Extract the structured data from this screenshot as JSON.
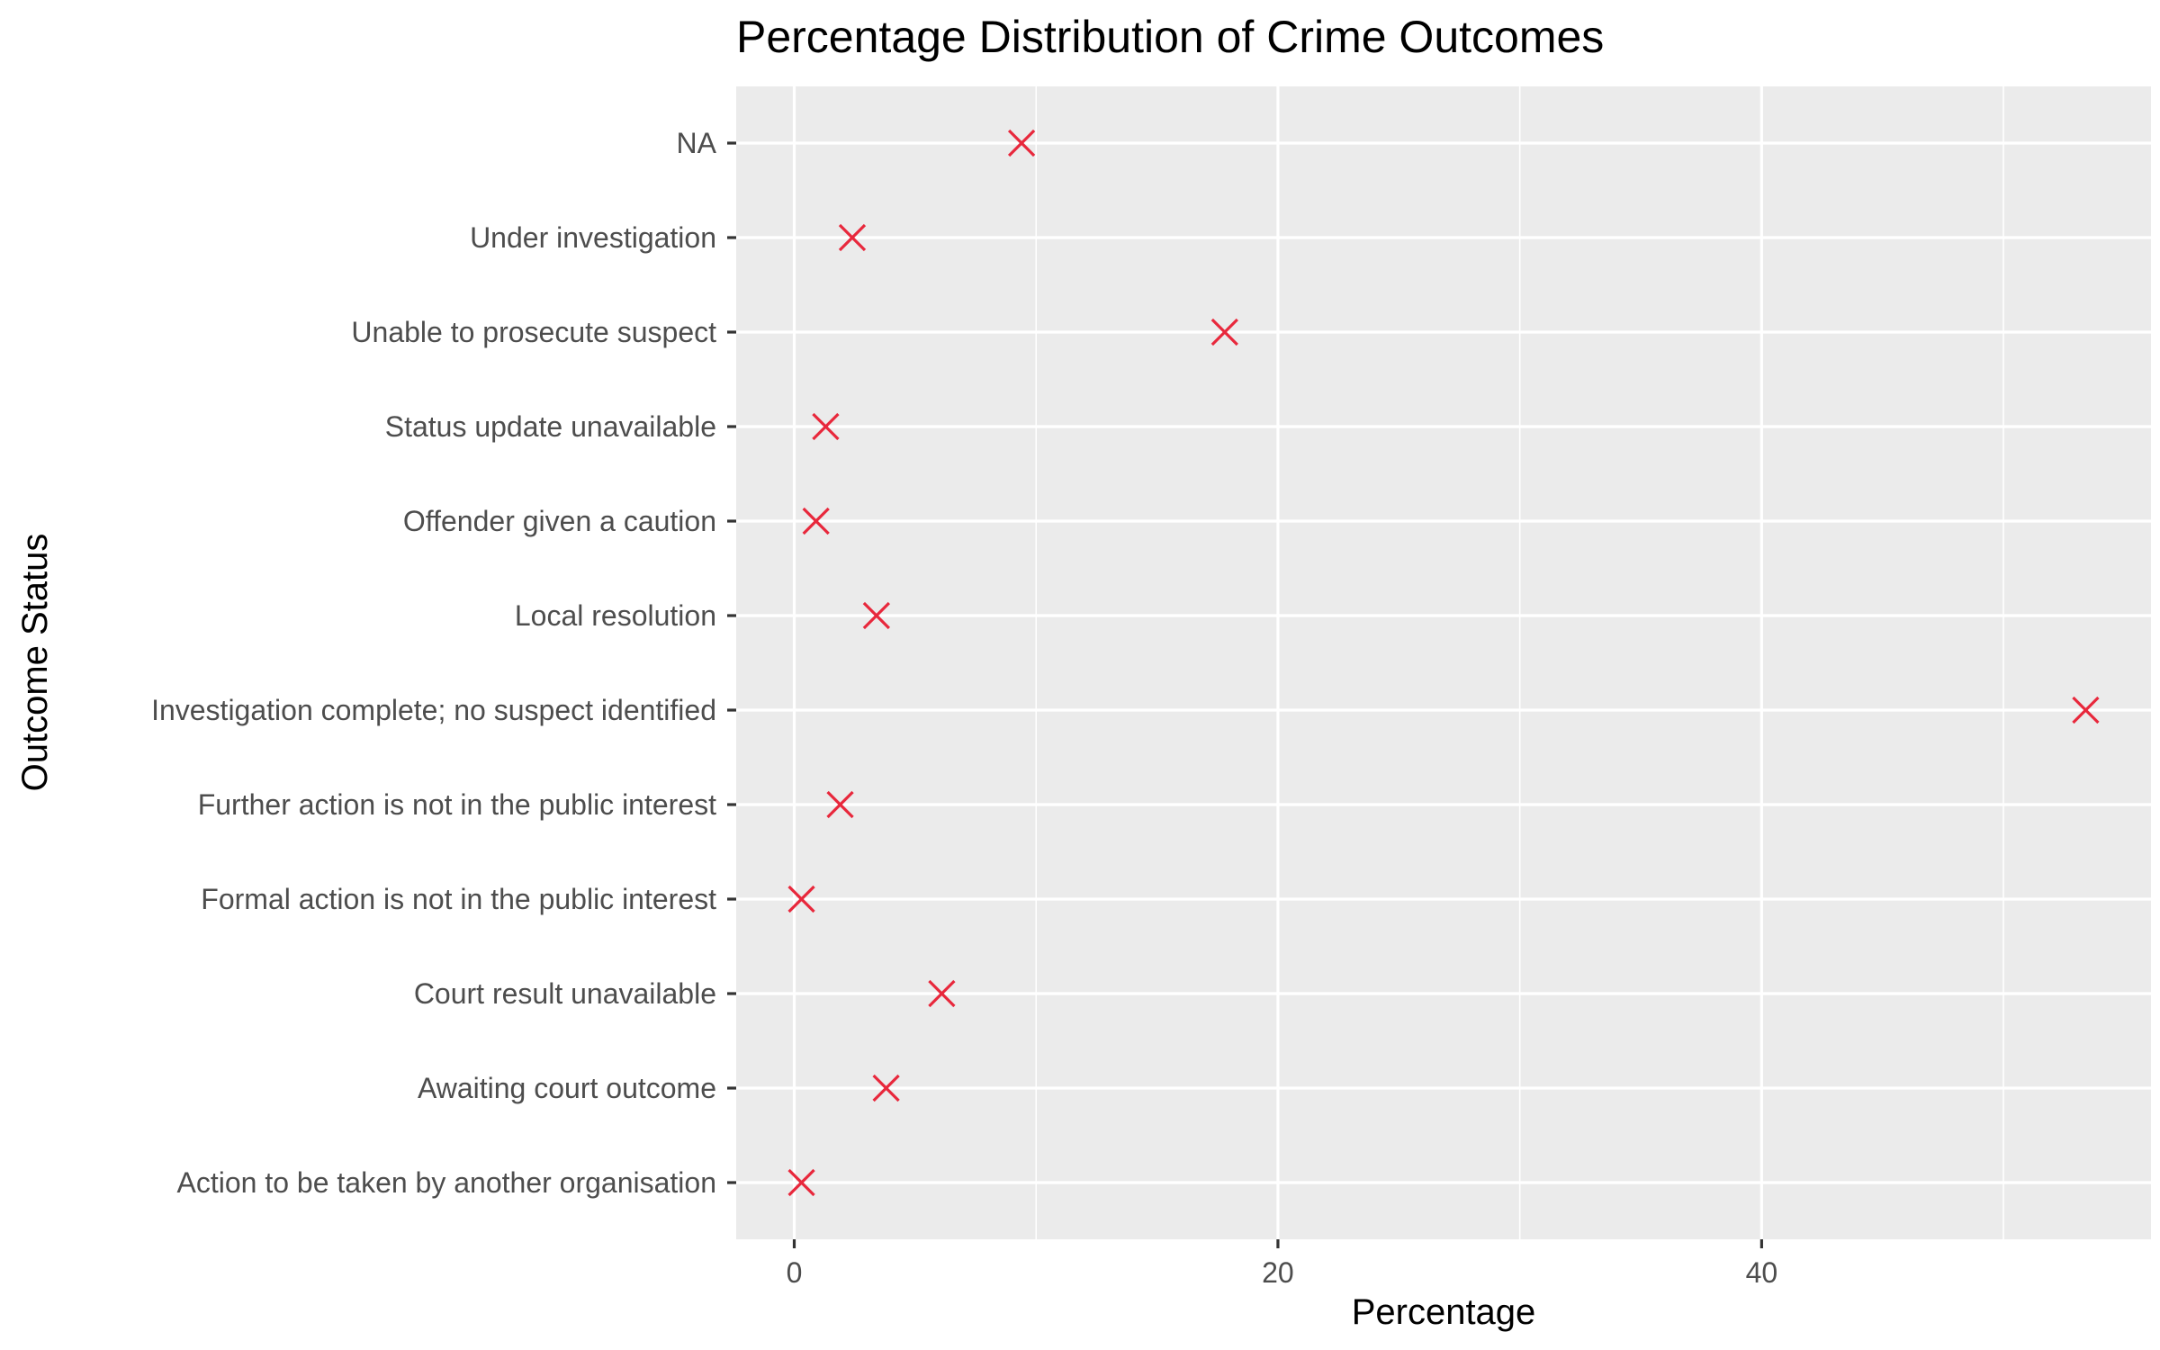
{
  "chart_data": {
    "type": "scatter",
    "title": "Percentage Distribution of Crime Outcomes",
    "xlabel": "Percentage",
    "ylabel": "Outcome Status",
    "xlim": [
      -2.4,
      56.1
    ],
    "x_ticks": [
      0,
      20,
      40
    ],
    "x_tick_labels": [
      "0",
      "20",
      "40"
    ],
    "x_minor_ticks": [
      10,
      30,
      50
    ],
    "grid": true,
    "marker": "x",
    "marker_color": "#E8283C",
    "panel_background": "#EBEBEB",
    "categories": [
      "Action to be taken by another organisation",
      "Awaiting court outcome",
      "Court result unavailable",
      "Formal action is not in the public interest",
      "Further action is not in the public interest",
      "Investigation complete; no suspect identified",
      "Local resolution",
      "Offender given a caution",
      "Status update unavailable",
      "Unable to prosecute suspect",
      "Under investigation",
      "NA"
    ],
    "values": [
      0.3,
      3.8,
      6.1,
      0.3,
      1.9,
      53.4,
      3.4,
      0.9,
      1.3,
      17.8,
      2.4,
      9.4
    ]
  }
}
